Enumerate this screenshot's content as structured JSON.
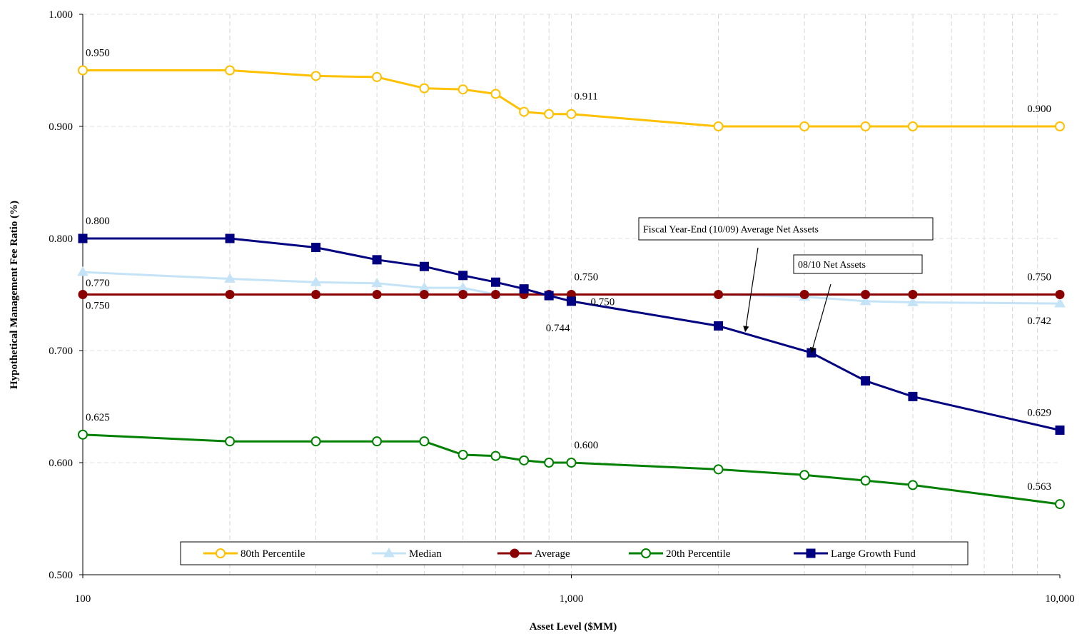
{
  "chart_data": {
    "type": "line",
    "title": "",
    "xlabel": "Asset Level ($MM)",
    "ylabel": "Hypothetical Management Fee Ratio (%)",
    "x_scale": "log",
    "xlim": [
      100,
      10000
    ],
    "ylim": [
      0.5,
      1.0
    ],
    "x_ticks": [
      100,
      1000,
      10000
    ],
    "x_tick_labels": [
      "100",
      "1,000",
      "10,000"
    ],
    "y_ticks": [
      0.5,
      0.6,
      0.7,
      0.8,
      0.9,
      1.0
    ],
    "y_tick_labels": [
      "0.500",
      "0.600",
      "0.700",
      "0.800",
      "0.900",
      "1.000"
    ],
    "grid": true,
    "legend_position": "bottom",
    "x": [
      100,
      200,
      300,
      400,
      500,
      600,
      700,
      800,
      900,
      1000,
      2000,
      3000,
      4000,
      5000,
      10000
    ],
    "series": [
      {
        "name": "80th Percentile",
        "color": "#FFC000",
        "marker": "open-circle",
        "values": [
          0.95,
          0.95,
          0.945,
          0.944,
          0.934,
          0.933,
          0.929,
          0.913,
          0.911,
          0.911,
          0.9,
          0.9,
          0.9,
          0.9,
          0.9
        ]
      },
      {
        "name": "Median",
        "color": "#C5E3F6",
        "marker": "triangle",
        "values": [
          0.77,
          0.764,
          0.761,
          0.76,
          0.756,
          0.756,
          0.75,
          0.75,
          0.75,
          0.75,
          0.75,
          0.748,
          0.744,
          0.743,
          0.742
        ]
      },
      {
        "name": "Average",
        "color": "#8B0000",
        "marker": "circle",
        "values": [
          0.75,
          0.75,
          0.75,
          0.75,
          0.75,
          0.75,
          0.75,
          0.75,
          0.75,
          0.75,
          0.75,
          0.75,
          0.75,
          0.75,
          0.75
        ]
      },
      {
        "name": "20th Percentile",
        "color": "#008000",
        "marker": "open-circle",
        "values": [
          0.625,
          0.619,
          0.619,
          0.619,
          0.619,
          0.607,
          0.606,
          0.602,
          0.6,
          0.6,
          0.594,
          0.589,
          0.584,
          0.58,
          0.563
        ]
      },
      {
        "name": "Large Growth Fund",
        "color": "#000080",
        "marker": "square",
        "x": [
          100,
          200,
          300,
          400,
          500,
          600,
          700,
          800,
          900,
          1000,
          2000,
          3100,
          4000,
          5000,
          10000
        ],
        "values": [
          0.8,
          0.8,
          0.792,
          0.781,
          0.775,
          0.767,
          0.761,
          0.755,
          0.749,
          0.744,
          0.722,
          0.698,
          0.673,
          0.659,
          0.629
        ]
      }
    ],
    "data_labels": [
      {
        "text": "0.950",
        "series": "80th Percentile",
        "x": 100,
        "y": 0.95,
        "pos": "above"
      },
      {
        "text": "0.911",
        "series": "80th Percentile",
        "x": 1000,
        "y": 0.911,
        "pos": "above"
      },
      {
        "text": "0.900",
        "series": "80th Percentile",
        "x": 10000,
        "y": 0.9,
        "pos": "above-left"
      },
      {
        "text": "0.800",
        "series": "Large Growth Fund",
        "x": 100,
        "y": 0.8,
        "pos": "above"
      },
      {
        "text": "0.770",
        "series": "Median",
        "x": 100,
        "y": 0.77,
        "pos": "below"
      },
      {
        "text": "0.750",
        "series": "Average",
        "x": 100,
        "y": 0.75,
        "pos": "below"
      },
      {
        "text": "0.750",
        "series": "Average",
        "x": 1000,
        "y": 0.75,
        "pos": "above"
      },
      {
        "text": "0.750",
        "series": "Median",
        "x": 1000,
        "y": 0.75,
        "pos": "below-right"
      },
      {
        "text": "0.744",
        "series": "Large Growth Fund",
        "x": 1000,
        "y": 0.744,
        "pos": "below-left"
      },
      {
        "text": "0.750",
        "series": "Average",
        "x": 10000,
        "y": 0.75,
        "pos": "above-left"
      },
      {
        "text": "0.742",
        "series": "Median",
        "x": 10000,
        "y": 0.742,
        "pos": "below-left"
      },
      {
        "text": "0.629",
        "series": "Large Growth Fund",
        "x": 10000,
        "y": 0.629,
        "pos": "above-left"
      },
      {
        "text": "0.625",
        "series": "20th Percentile",
        "x": 100,
        "y": 0.625,
        "pos": "above"
      },
      {
        "text": "0.600",
        "series": "20th Percentile",
        "x": 1000,
        "y": 0.6,
        "pos": "above"
      },
      {
        "text": "0.563",
        "series": "20th Percentile",
        "x": 10000,
        "y": 0.563,
        "pos": "above-left"
      }
    ],
    "annotations": [
      {
        "text": "Fiscal Year-End (10/09) Average Net Assets",
        "target_x": 2270,
        "target_y": 0.717
      },
      {
        "text": "08/10 Net Assets",
        "target_x": 3100,
        "target_y": 0.698
      }
    ]
  }
}
